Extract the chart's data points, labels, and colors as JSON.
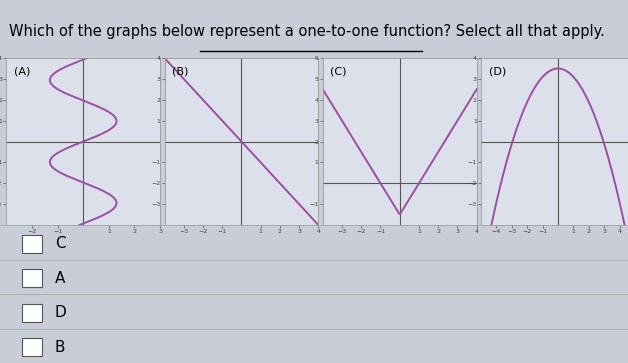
{
  "title_plain": "Which of the graphs below represent a ",
  "title_underlined": "one-to-one function",
  "title_end": "? Select all that apply.",
  "panels": [
    "(A)",
    "(B)",
    "(C)",
    "(D)"
  ],
  "curve_color": "#9b4fa0",
  "bg_color": "#c9cdd8",
  "panel_bg": "#dce0ea",
  "answer_options": [
    "C",
    "A",
    "D",
    "B"
  ],
  "font_size_title": 10.5,
  "font_size_panel_label": 8,
  "font_size_answer": 11
}
